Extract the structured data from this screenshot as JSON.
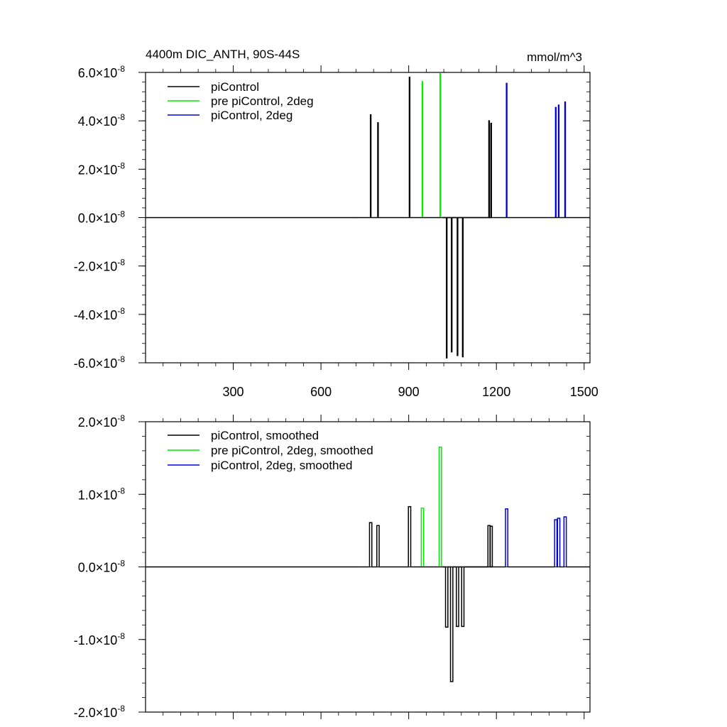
{
  "chart_data": [
    {
      "type": "line",
      "title": "4400m DIC_ANTH, 90S-44S",
      "units": "mmol/m^3",
      "xlim": [
        0,
        1520
      ],
      "ylim": [
        -6e-08,
        6e-08
      ],
      "x_ticks": [
        {
          "value": 300,
          "label": "300"
        },
        {
          "value": 600,
          "label": "600"
        },
        {
          "value": 900,
          "label": "900"
        },
        {
          "value": 1200,
          "label": "1200"
        },
        {
          "value": 1500,
          "label": "1500"
        }
      ],
      "y_ticks": [
        {
          "value": 6e-08,
          "mant": "6.0",
          "exp": "-8"
        },
        {
          "value": 4e-08,
          "mant": "4.0",
          "exp": "-8"
        },
        {
          "value": 2e-08,
          "mant": "2.0",
          "exp": "-8"
        },
        {
          "value": 0,
          "mant": "0.0",
          "exp": "-8"
        },
        {
          "value": -2e-08,
          "mant": "-2.0",
          "exp": "-8"
        },
        {
          "value": -4e-08,
          "mant": "-4.0",
          "exp": "-8"
        },
        {
          "value": -6e-08,
          "mant": "-6.0",
          "exp": "-8"
        }
      ],
      "series": [
        {
          "name": "piControl",
          "color": "#000000",
          "x_range": [
            0,
            1180
          ],
          "spike_width": 2,
          "spikes": [
            {
              "x": 770,
              "y": 4.25e-08
            },
            {
              "x": 795,
              "y": 3.92e-08
            },
            {
              "x": 903,
              "y": 5.8e-08
            },
            {
              "x": 1030,
              "y": -5.8e-08
            },
            {
              "x": 1047,
              "y": -5.55e-08
            },
            {
              "x": 1067,
              "y": -5.7e-08
            },
            {
              "x": 1085,
              "y": -5.75e-08
            },
            {
              "x": 1175,
              "y": 4e-08
            },
            {
              "x": 1182,
              "y": 3.9e-08
            }
          ]
        },
        {
          "name": "pre piControl, 2deg",
          "color": "#00ee00",
          "x_range": [
            720,
            1015
          ],
          "spike_width": 2,
          "spikes": [
            {
              "x": 947,
              "y": 5.62e-08
            },
            {
              "x": 1008,
              "y": 5.95e-08
            }
          ]
        },
        {
          "name": "piControl, 2deg",
          "color": "#0000dd",
          "x_range": [
            1015,
            1520
          ],
          "spike_width": 2,
          "spikes": [
            {
              "x": 1235,
              "y": 5.55e-08
            },
            {
              "x": 1403,
              "y": 4.55e-08
            },
            {
              "x": 1413,
              "y": 4.65e-08
            },
            {
              "x": 1435,
              "y": 4.78e-08
            }
          ]
        }
      ]
    },
    {
      "type": "line",
      "xlim": [
        0,
        1520
      ],
      "ylim": [
        -2e-08,
        2e-08
      ],
      "x_ticks": [
        {
          "value": 300,
          "label": ""
        },
        {
          "value": 600,
          "label": ""
        },
        {
          "value": 900,
          "label": ""
        },
        {
          "value": 1200,
          "label": ""
        },
        {
          "value": 1500,
          "label": ""
        }
      ],
      "y_ticks": [
        {
          "value": 2e-08,
          "mant": "2.0",
          "exp": "-8"
        },
        {
          "value": 1e-08,
          "mant": "1.0",
          "exp": "-8"
        },
        {
          "value": 0,
          "mant": "0.0",
          "exp": "-8"
        },
        {
          "value": -1e-08,
          "mant": "-1.0",
          "exp": "-8"
        },
        {
          "value": -2e-08,
          "mant": "-2.0",
          "exp": "-8"
        }
      ],
      "series": [
        {
          "name": "piControl, smoothed",
          "color": "#000000",
          "x_range": [
            0,
            1180
          ],
          "spike_width": 8,
          "spikes": [
            {
              "x": 770,
              "y": 6.1e-09
            },
            {
              "x": 795,
              "y": 5.7e-09
            },
            {
              "x": 903,
              "y": 8.3e-09
            },
            {
              "x": 1030,
              "y": -8.3e-09
            },
            {
              "x": 1047,
              "y": -1.58e-08
            },
            {
              "x": 1067,
              "y": -8.2e-09
            },
            {
              "x": 1085,
              "y": -8.2e-09
            },
            {
              "x": 1175,
              "y": 5.7e-09
            },
            {
              "x": 1182,
              "y": 5.6e-09
            }
          ]
        },
        {
          "name": "pre piControl, 2deg, smoothed",
          "color": "#00ee00",
          "x_range": [
            720,
            1015
          ],
          "spike_width": 8,
          "spikes": [
            {
              "x": 947,
              "y": 8.1e-09
            },
            {
              "x": 1008,
              "y": 1.65e-08
            }
          ]
        },
        {
          "name": "piControl, 2deg, smoothed",
          "color": "#0000dd",
          "x_range": [
            1015,
            1520
          ],
          "spike_width": 8,
          "spikes": [
            {
              "x": 1235,
              "y": 8e-09
            },
            {
              "x": 1403,
              "y": 6.5e-09
            },
            {
              "x": 1413,
              "y": 6.7e-09
            },
            {
              "x": 1435,
              "y": 6.9e-09
            }
          ]
        }
      ]
    }
  ]
}
